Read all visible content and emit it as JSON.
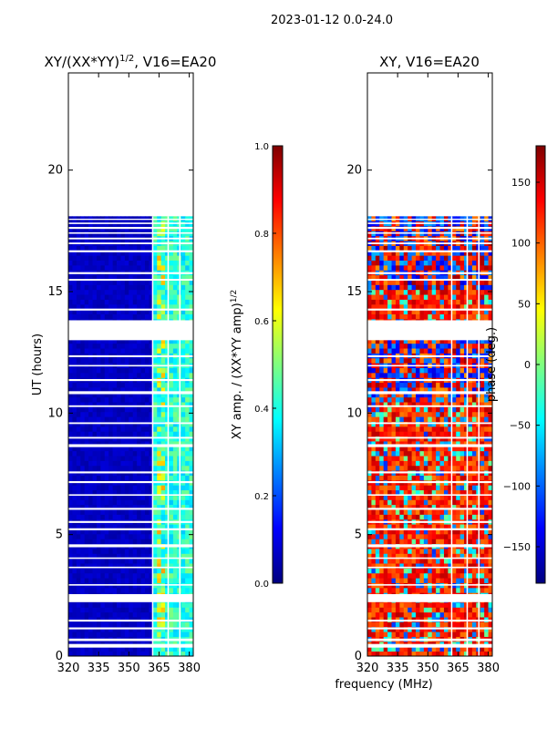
{
  "suptitle": "2023-01-12 0.0-24.0",
  "colors": {
    "background": "#ffffff",
    "frame": "#000000",
    "jet_stops": [
      "#00007f",
      "#0000ff",
      "#007fff",
      "#00ffff",
      "#7fff7f",
      "#ffff00",
      "#ff7f00",
      "#ff0000",
      "#7f0000"
    ]
  },
  "chart_data": [
    {
      "type": "heatmap",
      "title": "XY/(XX*YY)",
      "title_sup": "1/2",
      "title_tail": ", V16=EA20",
      "xlabel": "",
      "ylabel": "UT (hours)",
      "xlim": [
        320,
        382
      ],
      "ylim": [
        0,
        24
      ],
      "xticks": [
        320,
        335,
        350,
        365,
        380
      ],
      "yticks": [
        0,
        5,
        10,
        15,
        20
      ],
      "data_time_range": [
        0.0,
        18.1
      ],
      "gaps": [
        [
          0.35,
          0.5
        ],
        [
          0.62,
          0.72
        ],
        [
          1.1,
          1.18
        ],
        [
          1.42,
          1.5
        ],
        [
          2.22,
          2.55
        ],
        [
          2.9,
          2.96
        ],
        [
          3.62,
          3.68
        ],
        [
          4.0,
          4.06
        ],
        [
          4.48,
          4.6
        ],
        [
          5.18,
          5.26
        ],
        [
          5.48,
          5.56
        ],
        [
          6.02,
          6.1
        ],
        [
          6.6,
          6.66
        ],
        [
          7.12,
          7.2
        ],
        [
          7.52,
          7.6
        ],
        [
          8.6,
          8.72
        ],
        [
          8.95,
          9.02
        ],
        [
          9.55,
          9.62
        ],
        [
          10.25,
          10.32
        ],
        [
          10.78,
          10.9
        ],
        [
          11.32,
          11.4
        ],
        [
          11.92,
          11.98
        ],
        [
          12.3,
          12.38
        ],
        [
          13.0,
          13.82
        ],
        [
          14.22,
          14.3
        ],
        [
          15.45,
          15.52
        ],
        [
          15.72,
          15.8
        ],
        [
          16.62,
          16.7
        ],
        [
          16.95,
          17.02
        ],
        [
          17.15,
          17.22
        ],
        [
          17.38,
          17.44
        ],
        [
          17.58,
          17.66
        ],
        [
          17.78,
          17.84
        ],
        [
          17.95,
          18.0
        ]
      ],
      "value_range": [
        0.0,
        1.0
      ],
      "description_values": {
        "background": 0.05,
        "band_363_382": 0.4
      }
    },
    {
      "type": "colorbar",
      "ylabel": "XY amp. / (XX*YY amp)",
      "ylabel_sup": "1/2",
      "range": [
        0.0,
        1.0
      ],
      "ticks": [
        "0.0",
        "0.2",
        "0.4",
        "0.6",
        "0.8",
        "1.0"
      ]
    },
    {
      "type": "heatmap",
      "title": "XY, V16=EA20",
      "xlabel": "frequency (MHz)",
      "ylabel": "",
      "xlim": [
        320,
        382
      ],
      "ylim": [
        0,
        24
      ],
      "xticks": [
        320,
        335,
        350,
        365,
        380
      ],
      "yticks": [
        0,
        5,
        10,
        15,
        20
      ],
      "data_time_range": [
        0.0,
        18.1
      ],
      "value_range": [
        -180,
        180
      ],
      "description_values": {
        "dominant": 120
      }
    },
    {
      "type": "colorbar",
      "ylabel": "phase (deg.)",
      "range": [
        -180,
        180
      ],
      "ticks": [
        "−150",
        "−100",
        "−50",
        "0",
        "50",
        "100",
        "150"
      ]
    }
  ]
}
